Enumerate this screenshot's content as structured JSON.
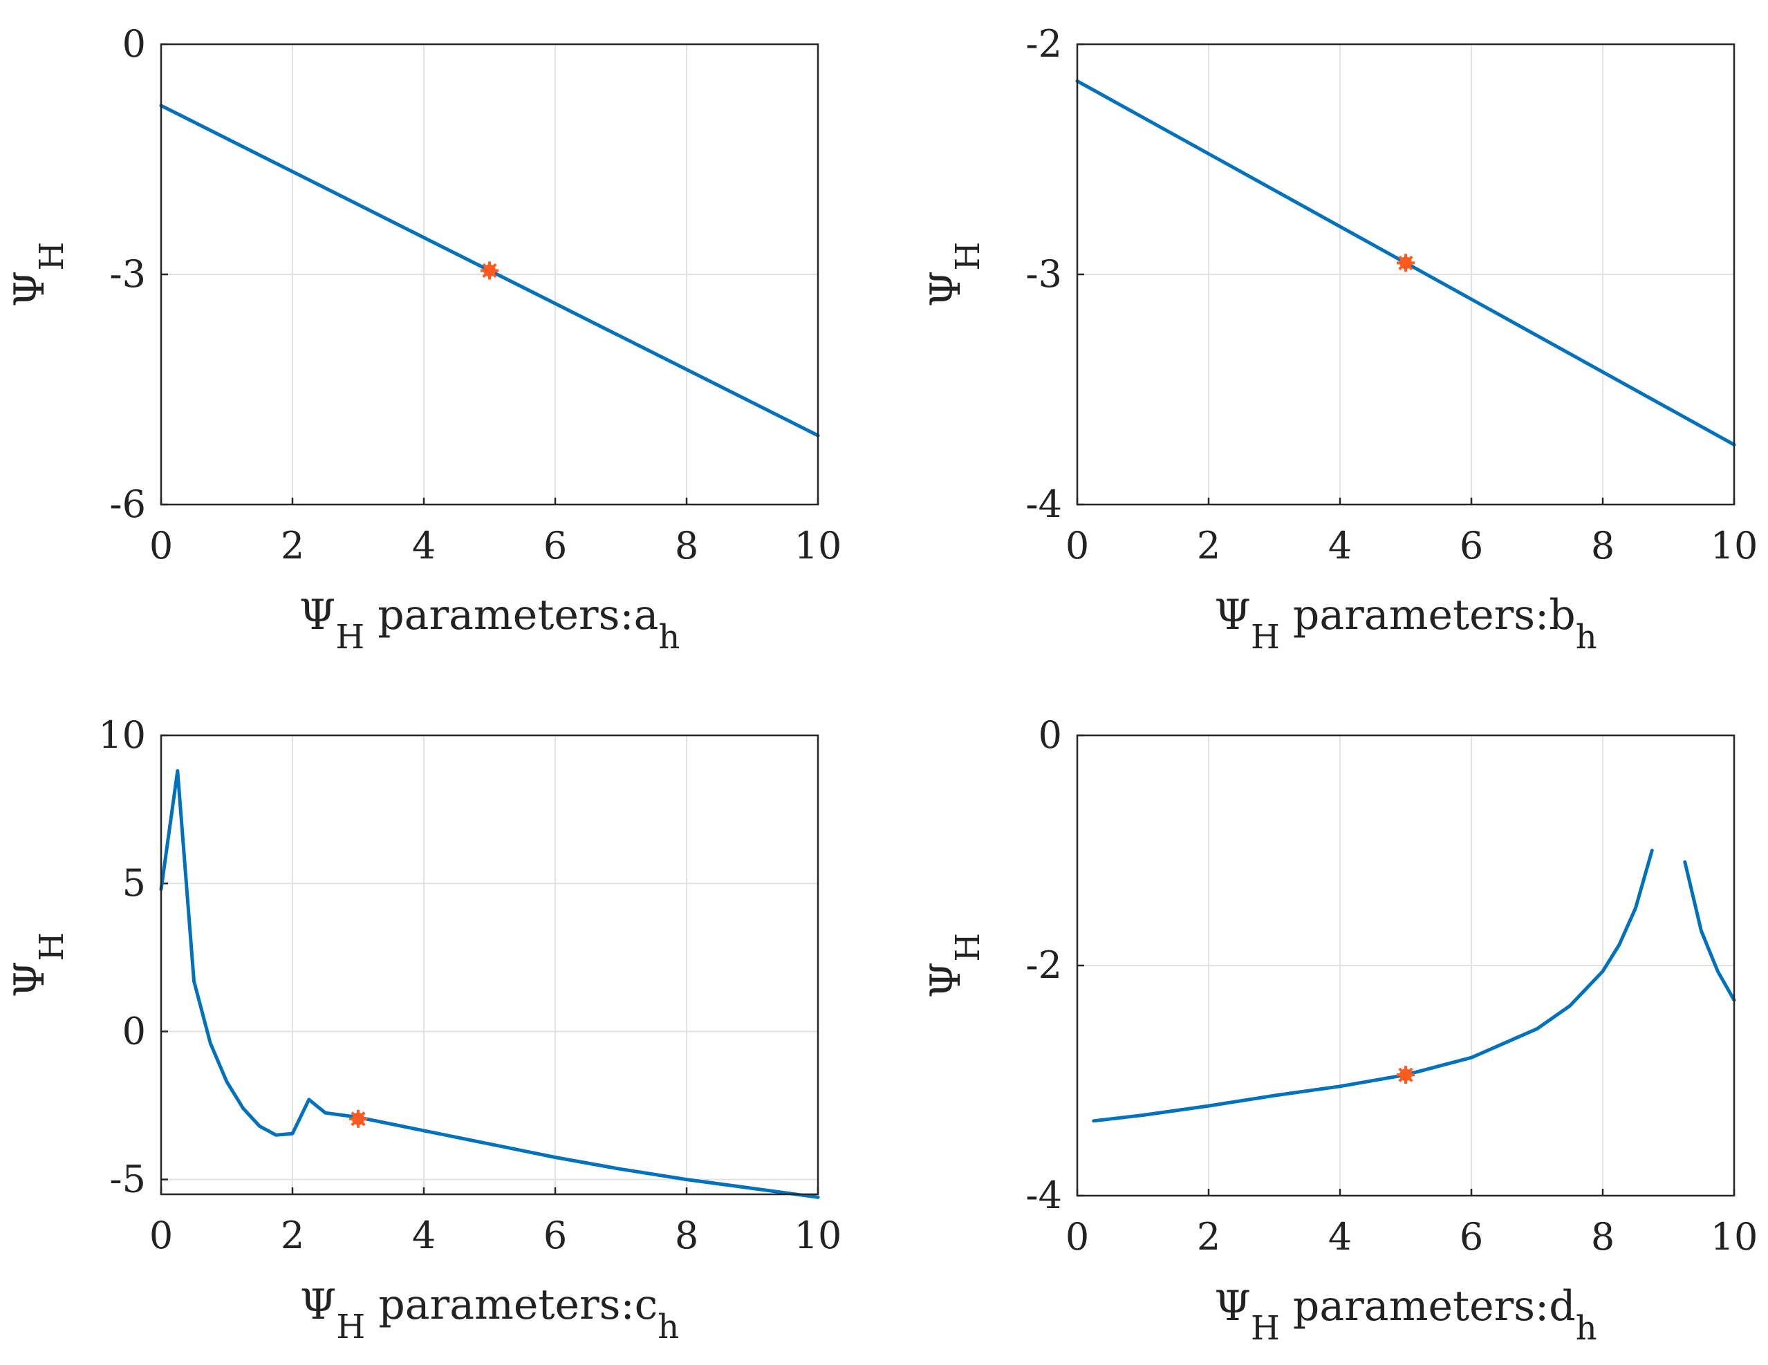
{
  "figure": {
    "colors": {
      "line": "#0072BD",
      "marker": "#FF5A1F",
      "grid": "#e2e2e2",
      "axis": "#262626"
    }
  },
  "chart_data": [
    {
      "type": "line",
      "xlabel": {
        "psi": "Ψ",
        "psi_sub": "H",
        "text": " parameters:a",
        "sub": "h"
      },
      "ylabel": {
        "psi": "Ψ",
        "psi_sub": "H"
      },
      "xlim": [
        0,
        10
      ],
      "ylim": [
        -6,
        0
      ],
      "xticks": [
        0,
        2,
        4,
        6,
        8,
        10
      ],
      "xtick_labels": [
        "0",
        "2",
        "4",
        "6",
        "8",
        "10"
      ],
      "yticks": [
        -6,
        -3,
        0
      ],
      "ytick_labels": [
        "-6",
        "-3",
        "0"
      ],
      "grid": true,
      "series": [
        {
          "x": [
            0,
            10
          ],
          "y": [
            -0.8,
            -5.1
          ]
        }
      ],
      "highlight": {
        "x": 5,
        "y": -2.95
      }
    },
    {
      "type": "line",
      "xlabel": {
        "psi": "Ψ",
        "psi_sub": "H",
        "text": " parameters:b",
        "sub": "h"
      },
      "ylabel": {
        "psi": "Ψ",
        "psi_sub": "H"
      },
      "xlim": [
        0,
        10
      ],
      "ylim": [
        -4,
        -2
      ],
      "xticks": [
        0,
        2,
        4,
        6,
        8,
        10
      ],
      "xtick_labels": [
        "0",
        "2",
        "4",
        "6",
        "8",
        "10"
      ],
      "yticks": [
        -4,
        -3,
        -2
      ],
      "ytick_labels": [
        "-4",
        "-3",
        "-2"
      ],
      "grid": true,
      "series": [
        {
          "x": [
            0,
            10
          ],
          "y": [
            -2.16,
            -3.74
          ]
        }
      ],
      "highlight": {
        "x": 5,
        "y": -2.95
      }
    },
    {
      "type": "line",
      "xlabel": {
        "psi": "Ψ",
        "psi_sub": "H",
        "text": " parameters:c",
        "sub": "h"
      },
      "ylabel": {
        "psi": "Ψ",
        "psi_sub": "H"
      },
      "xlim": [
        0,
        10
      ],
      "ylim": [
        -5.5,
        10
      ],
      "xticks": [
        0,
        2,
        4,
        6,
        8,
        10
      ],
      "xtick_labels": [
        "0",
        "2",
        "4",
        "6",
        "8",
        "10"
      ],
      "yticks": [
        -5,
        0,
        5,
        10
      ],
      "ytick_labels": [
        "-5",
        "0",
        "5",
        "10"
      ],
      "grid": true,
      "series": [
        {
          "x": [
            0,
            0.25,
            0.5,
            0.75,
            1.0,
            1.25,
            1.5,
            1.75,
            2.0,
            2.25,
            2.5,
            3.0,
            4.0,
            5.0,
            6.0,
            7.0,
            8.0,
            9.0,
            10.0
          ],
          "y": [
            4.8,
            8.8,
            1.7,
            -0.4,
            -1.7,
            -2.6,
            -3.2,
            -3.5,
            -3.45,
            -2.3,
            -2.75,
            -2.9,
            -3.35,
            -3.8,
            -4.25,
            -4.65,
            -5.0,
            -5.3,
            -5.6
          ]
        }
      ],
      "highlight": {
        "x": 3,
        "y": -2.95
      }
    },
    {
      "type": "line",
      "xlabel": {
        "psi": "Ψ",
        "psi_sub": "H",
        "text": " parameters:d",
        "sub": "h"
      },
      "ylabel": {
        "psi": "Ψ",
        "psi_sub": "H"
      },
      "xlim": [
        0,
        10
      ],
      "ylim": [
        -4,
        0
      ],
      "xticks": [
        0,
        2,
        4,
        6,
        8,
        10
      ],
      "xtick_labels": [
        "0",
        "2",
        "4",
        "6",
        "8",
        "10"
      ],
      "yticks": [
        -4,
        -2,
        0
      ],
      "ytick_labels": [
        "-4",
        "-2",
        "0"
      ],
      "grid": true,
      "series": [
        {
          "x": [
            0.25,
            1.0,
            2.0,
            3.0,
            4.0,
            5.0,
            6.0,
            7.0,
            7.5,
            8.0,
            8.25,
            8.5,
            8.75
          ],
          "y": [
            -3.35,
            -3.3,
            -3.22,
            -3.13,
            -3.05,
            -2.95,
            -2.8,
            -2.55,
            -2.35,
            -2.05,
            -1.82,
            -1.5,
            -1.0
          ]
        },
        {
          "x": [
            9.25,
            9.5,
            9.75,
            10.0
          ],
          "y": [
            -1.1,
            -1.7,
            -2.05,
            -2.3
          ]
        }
      ],
      "highlight": {
        "x": 5,
        "y": -2.95
      }
    }
  ]
}
